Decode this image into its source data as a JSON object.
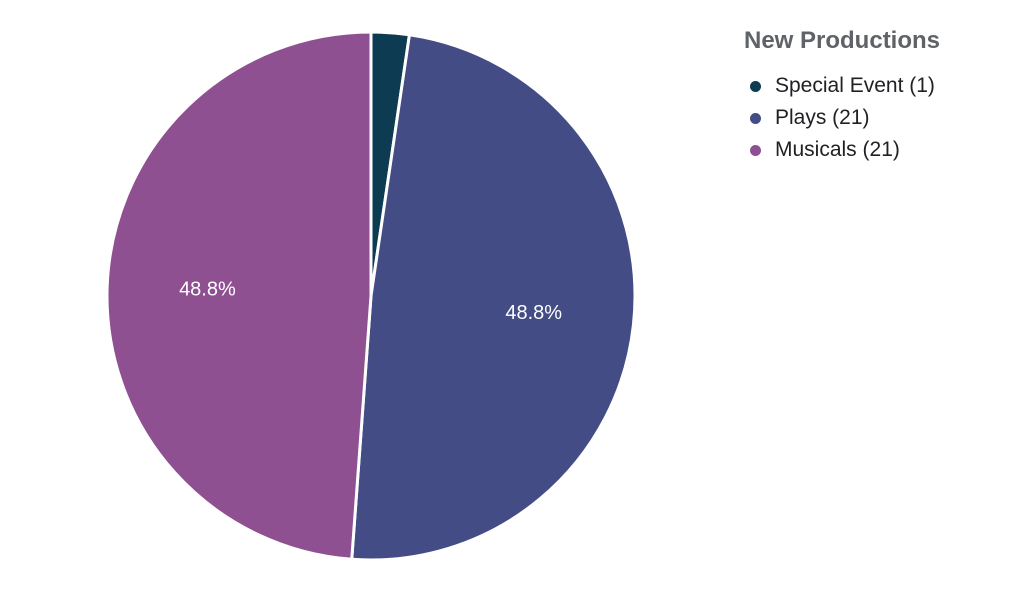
{
  "chart_data": {
    "type": "pie",
    "title": "New Productions",
    "legend_position": "top-right",
    "slices": [
      {
        "label": "Special Event",
        "value": 1,
        "display": "Special Event (1)",
        "percent_label": "",
        "color": "#0d3b52"
      },
      {
        "label": "Plays",
        "value": 21,
        "display": "Plays (21)",
        "percent_label": "48.8%",
        "color": "#434c84"
      },
      {
        "label": "Musicals",
        "value": 21,
        "display": "Musicals (21)",
        "percent_label": "48.8%",
        "color": "#8f5092"
      }
    ]
  }
}
